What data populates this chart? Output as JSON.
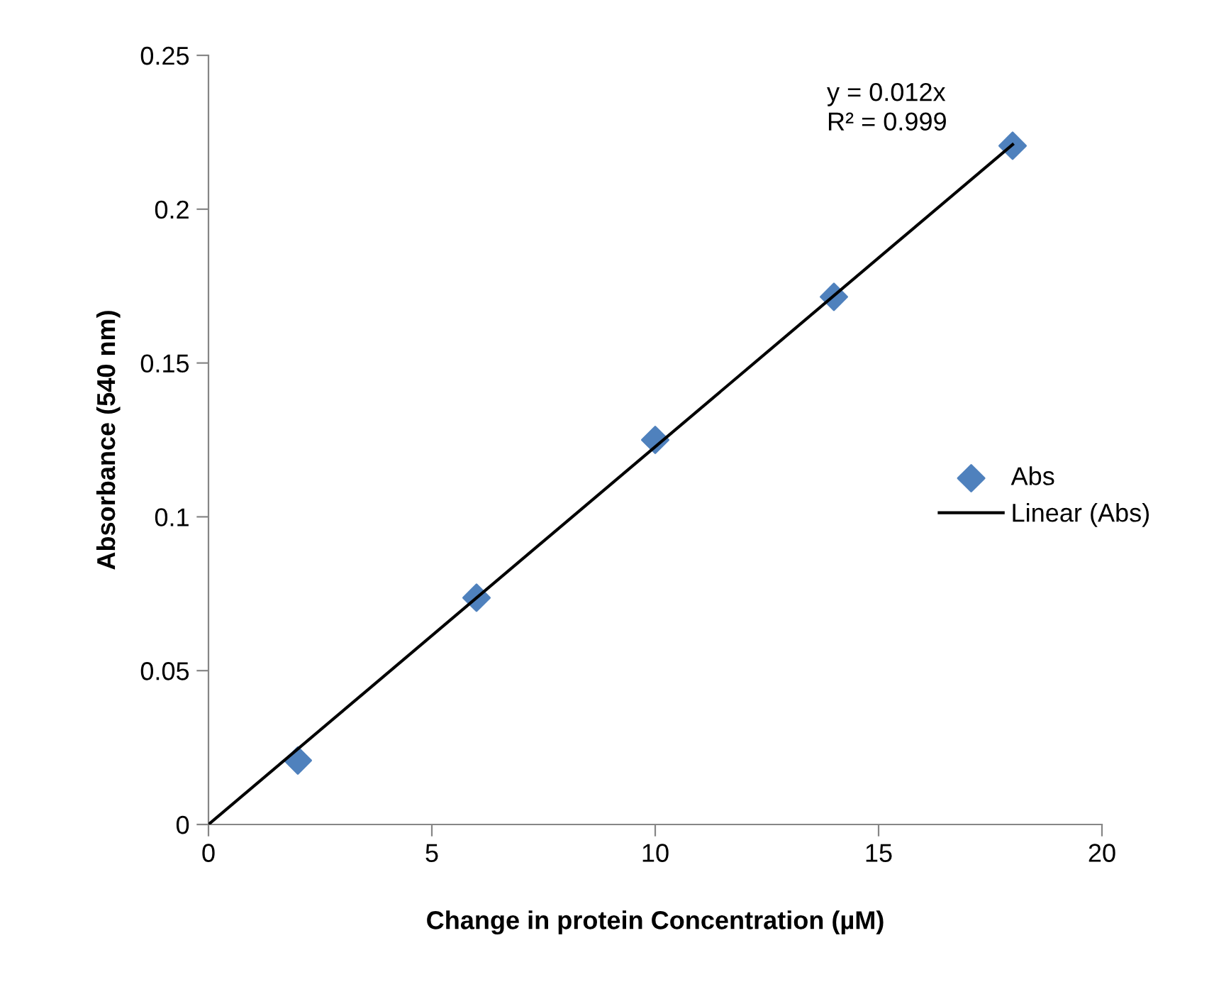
{
  "chart_data": {
    "type": "scatter",
    "xlabel": "Change in protein Concentration (µM)",
    "ylabel": "Absorbance (540 nm)",
    "series": [
      {
        "name": "Abs",
        "color": "#4f81bd",
        "marker": "diamond",
        "x": [
          2,
          6,
          10,
          14,
          18
        ],
        "values": [
          0.0208,
          0.0737,
          0.125,
          0.1715,
          0.2206
        ]
      },
      {
        "name": "Linear (Abs)",
        "type": "line",
        "color": "#000000",
        "marker": "none",
        "x": [
          0,
          18
        ],
        "values": [
          0,
          0.221
        ]
      }
    ],
    "annotations": [
      "y = 0.012x\nR² = 0.999"
    ],
    "xlim": [
      0,
      20
    ],
    "xticks": [
      0,
      5,
      10,
      15,
      20
    ],
    "ylim": [
      0,
      0.25
    ],
    "yticks": [
      0,
      0.05,
      0.1,
      0.15,
      0.2,
      0.25
    ],
    "grid": false,
    "legend": "right"
  }
}
